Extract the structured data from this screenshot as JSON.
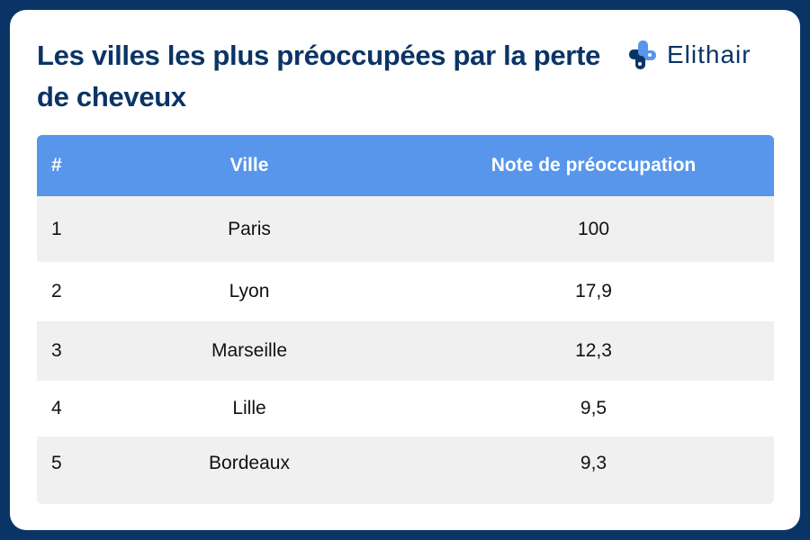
{
  "title": "Les villes les plus préoccupées par la perte de cheveux",
  "brand": {
    "name": "Elithair",
    "logo_icon": "plus-cross-icon"
  },
  "colors": {
    "frame": "#0b3466",
    "header": "#5796ea",
    "stripe": "#f0f0f0"
  },
  "table": {
    "headers": [
      "#",
      "Ville",
      "Note de préoccupation"
    ],
    "rows": [
      {
        "rank": "1",
        "city": "Paris",
        "score": "100"
      },
      {
        "rank": "2",
        "city": "Lyon",
        "score": "17,9"
      },
      {
        "rank": "3",
        "city": "Marseille",
        "score": "12,3"
      },
      {
        "rank": "4",
        "city": "Lille",
        "score": "9,5"
      },
      {
        "rank": "5",
        "city": "Bordeaux",
        "score": "9,3"
      }
    ]
  }
}
